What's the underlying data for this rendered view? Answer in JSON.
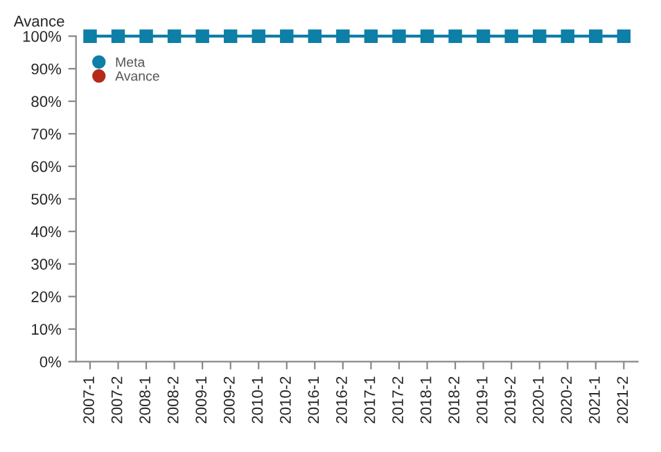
{
  "chart_data": {
    "type": "line",
    "ylabel": "Avance",
    "categories": [
      "2007-1",
      "2007-2",
      "2008-1",
      "2008-2",
      "2009-1",
      "2009-2",
      "2010-1",
      "2010-2",
      "2016-1",
      "2016-2",
      "2017-1",
      "2017-2",
      "2018-1",
      "2018-2",
      "2019-1",
      "2019-2",
      "2020-1",
      "2020-2",
      "2021-1",
      "2021-2"
    ],
    "series": [
      {
        "name": "Meta",
        "color": "#0e7fa6",
        "values": [
          100,
          100,
          100,
          100,
          100,
          100,
          100,
          100,
          100,
          100,
          100,
          100,
          100,
          100,
          100,
          100,
          100,
          100,
          100,
          100
        ]
      },
      {
        "name": "Avance",
        "color": "#b52a1c",
        "values": [
          null,
          null,
          null,
          null,
          null,
          null,
          null,
          null,
          null,
          null,
          null,
          null,
          null,
          null,
          null,
          null,
          null,
          null,
          null,
          null
        ]
      }
    ],
    "ylim": [
      0,
      100
    ],
    "yticks": [
      {
        "value": 0,
        "label": "0%"
      },
      {
        "value": 10,
        "label": "10%"
      },
      {
        "value": 20,
        "label": "20%"
      },
      {
        "value": 30,
        "label": "30%"
      },
      {
        "value": 40,
        "label": "40%"
      },
      {
        "value": 50,
        "label": "50%"
      },
      {
        "value": 60,
        "label": "60%"
      },
      {
        "value": 70,
        "label": "70%"
      },
      {
        "value": 80,
        "label": "80%"
      },
      {
        "value": 90,
        "label": "90%"
      },
      {
        "value": 100,
        "label": "100%"
      }
    ],
    "grid": false,
    "legend": "top left",
    "marker": "square",
    "line_style": "solid"
  }
}
